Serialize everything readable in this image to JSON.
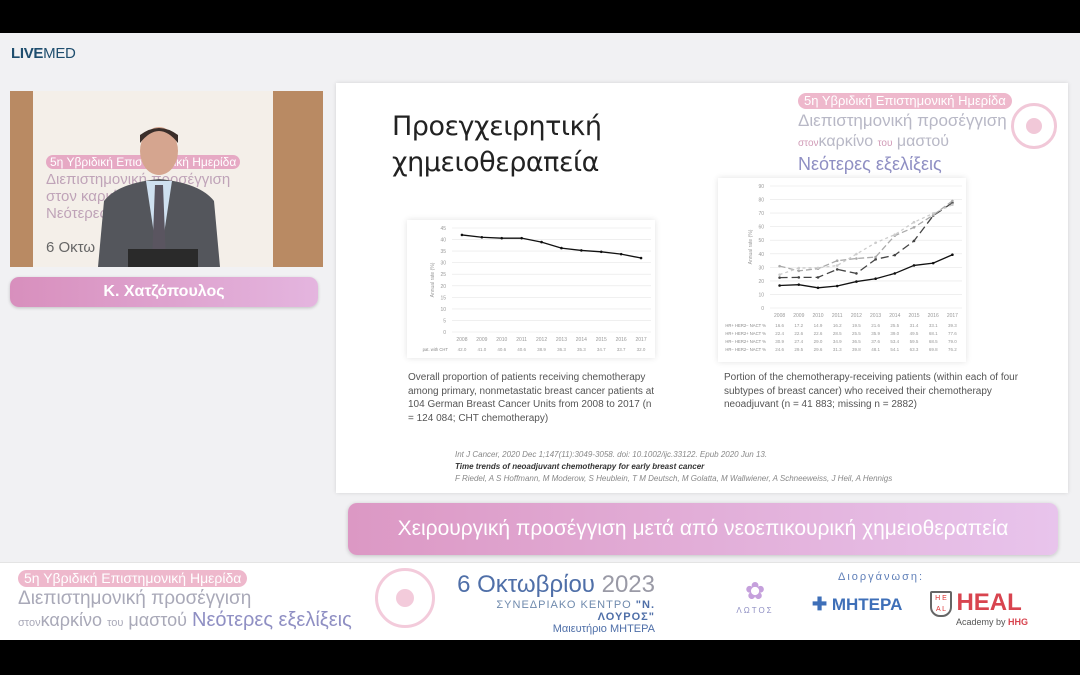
{
  "app": {
    "logo_bold": "LIVE",
    "logo_light": "MED"
  },
  "speaker": {
    "name": "Κ. Χατζόπουλος",
    "backdrop": {
      "pill": "5η Υβριδική Επιστημονική Ημερίδα",
      "line2": "Διεπιστημονική προσέγγιση",
      "line3": "στον καρκίνο",
      "line4": "Νεότερες",
      "date": "6 Οκτω"
    }
  },
  "slide": {
    "title_line1": "Προεγχειρητική",
    "title_line2": "χημειοθεραπεία",
    "brand": {
      "pill": "5η Υβριδική Επιστημονική Ημερίδα",
      "line2": "Διεπιστημονική προσέγγιση",
      "line3_small": "στον",
      "line3": "καρκίνο",
      "line3_small2": "του",
      "line3b": "μαστού",
      "line4": "Νεότερες εξελίξεις"
    },
    "caption1": "Overall proportion of patients receiving chemotherapy among primary, nonmetastatic breast cancer patients at 104 German Breast Cancer Units from 2008 to 2017 (n = 124 084; CHT chemotherapy)",
    "caption2": "Portion of the chemotherapy-receiving patients (within each of four subtypes of breast cancer) who received their chemotherapy neoadjuvant (n = 41 883; missing n = 2882)",
    "citation": {
      "ref": "Int J Cancer, 2020 Dec 1;147(11):3049-3058. doi: 10.1002/ijc.33122. Epub 2020 Jun 13.",
      "title": "Time trends of neoadjuvant chemotherapy for early breast cancer",
      "authors": "F Riedel, A S Hoffmann, M Moderow, S Heublein, T M Deutsch, M Golatta, M Wallwiener, A Schneeweiss, J Heil, A Hennigs"
    }
  },
  "chart_data": [
    {
      "type": "line",
      "ylabel": "Annual rate (%)",
      "ylim": [
        0,
        45
      ],
      "yticks": [
        0,
        5,
        10,
        15,
        20,
        25,
        30,
        35,
        40,
        45
      ],
      "grid": true,
      "legend_position": "bottom",
      "categories": [
        "2008",
        "2009",
        "2010",
        "2011",
        "2012",
        "2013",
        "2014",
        "2015",
        "2016",
        "2017"
      ],
      "series": [
        {
          "name": "pat. with CHT",
          "values": [
            42.0,
            41.0,
            40.6,
            40.6,
            38.9,
            36.3,
            35.3,
            34.7,
            33.7,
            32.0
          ],
          "color": "#111111",
          "dash": ""
        }
      ]
    },
    {
      "type": "line",
      "ylabel": "Annual rate (%)",
      "ylim": [
        0,
        90
      ],
      "yticks": [
        0,
        10,
        20,
        30,
        40,
        50,
        60,
        70,
        80,
        90
      ],
      "grid": true,
      "legend_position": "bottom",
      "categories": [
        "2008",
        "2009",
        "2010",
        "2011",
        "2012",
        "2013",
        "2014",
        "2015",
        "2016",
        "2017"
      ],
      "series": [
        {
          "name": "HR+ HER2− NACT %",
          "values": [
            16.6,
            17.2,
            14.9,
            16.2,
            19.5,
            21.6,
            25.5,
            31.4,
            33.1,
            39.3
          ],
          "color": "#111111",
          "dash": ""
        },
        {
          "name": "HR+ HER2+ NACT %",
          "values": [
            22.4,
            22.6,
            22.6,
            28.5,
            25.5,
            35.9,
            39.0,
            49.5,
            68.1,
            77.6
          ],
          "color": "#444444",
          "dash": "8,4"
        },
        {
          "name": "HR− HER2+ NACT %",
          "values": [
            30.9,
            27.4,
            29.0,
            34.9,
            36.5,
            37.6,
            53.4,
            59.5,
            68.5,
            79.0
          ],
          "color": "#aaaaaa",
          "dash": "6,3"
        },
        {
          "name": "HR− HER2− NACT %",
          "values": [
            24.6,
            29.5,
            29.6,
            31.3,
            39.8,
            48.1,
            54.1,
            63.3,
            69.8,
            76.2
          ],
          "color": "#cccccc",
          "dash": "3,3"
        }
      ]
    }
  ],
  "topic": "Χειρουργική προσέγγιση μετά από νεοεπικουρική χημειοθεραπεία",
  "banner": {
    "pill": "5η Υβριδική Επιστημονική Ημερίδα",
    "line2": "Διεπιστημονική προσέγγιση",
    "line3_small": "στον",
    "line3": "καρκίνο",
    "line3_small2": "του",
    "line3b": "μαστού",
    "line3_accent": "Νεότερες εξελίξεις",
    "date_day": "6 Οκτωβρίου",
    "date_year": "2023",
    "venue_prefix": "ΣΥΝΕΔΡΙΑΚΟ ΚΕΝΤΡΟ",
    "venue_name": "\"Ν. ΛΟΥΡΟΣ\"",
    "hospital": "Μαιευτήριο ΜΗΤΕΡΑ",
    "organizers_label": "Διοργάνωση:",
    "lotos": "ΛΩΤΟΣ",
    "mitera": "ΜΗΤΕΡΑ",
    "heal": "HEAL",
    "heal_sub": "Academy by",
    "heal_hhg": "HHG"
  }
}
